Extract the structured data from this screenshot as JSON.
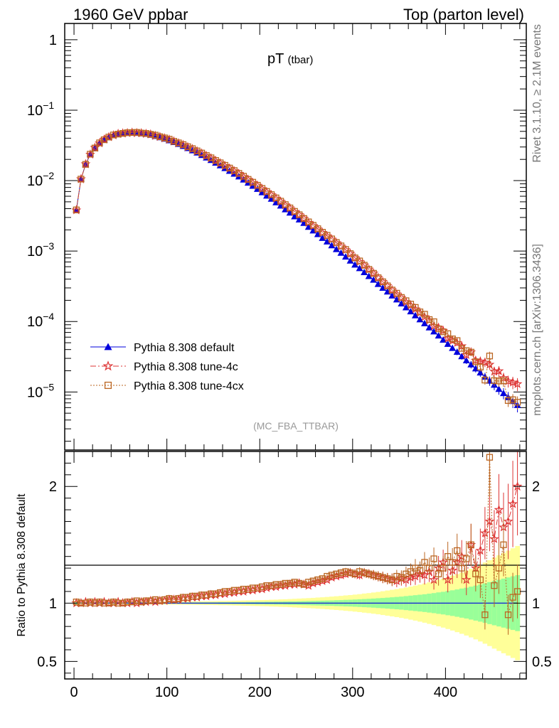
{
  "header": {
    "left": "1960 GeV ppbar",
    "right": "Top (parton level)",
    "side_top": "Rivet 3.1.10, ≥ 2.1M events",
    "side_bottom": "mcplots.cern.ch [arXiv:1306.3436]"
  },
  "chart_data": [
    {
      "type": "line",
      "title": "pT",
      "title_sub": "(tbar)",
      "watermark": "(MC_FBA_TTBAR)",
      "ylabel": "",
      "xlabel": "",
      "x_scale": "linear",
      "y_scale": "log",
      "xlim": [
        -10,
        487
      ],
      "ylim": [
        1.5e-06,
        1.7
      ],
      "y_ticks": [
        {
          "value": 1,
          "label": "1"
        },
        {
          "value": 0.1,
          "label": "10",
          "exp": "−1"
        },
        {
          "value": 0.01,
          "label": "10",
          "exp": "−2"
        },
        {
          "value": 0.001,
          "label": "10",
          "exp": "−3"
        },
        {
          "value": 0.0001,
          "label": "10",
          "exp": "−4"
        },
        {
          "value": 1e-05,
          "label": "10",
          "exp": "−5"
        }
      ],
      "legend_position": "lower-left",
      "series": [
        {
          "name": "Pythia 8.308 default",
          "color": "#0000dd",
          "marker": "filled-triangle",
          "line": "solid"
        },
        {
          "name": "Pythia 8.308 tune-4c",
          "color": "#dd3333",
          "marker": "open-star",
          "line": "dash-dot"
        },
        {
          "name": "Pythia 8.308 tune-4cx",
          "color": "#bb6622",
          "marker": "open-square",
          "line": "dotted"
        }
      ],
      "x": [
        2.5,
        7.5,
        12.5,
        17.5,
        22.5,
        27.5,
        32.5,
        37.5,
        42.5,
        47.5,
        52.5,
        57.5,
        62.5,
        67.5,
        72.5,
        77.5,
        82.5,
        87.5,
        92.5,
        97.5,
        102.5,
        107.5,
        112.5,
        117.5,
        122.5,
        127.5,
        132.5,
        137.5,
        142.5,
        147.5,
        152.5,
        157.5,
        162.5,
        167.5,
        172.5,
        177.5,
        182.5,
        187.5,
        192.5,
        197.5,
        202.5,
        207.5,
        212.5,
        217.5,
        222.5,
        227.5,
        232.5,
        237.5,
        242.5,
        247.5,
        252.5,
        257.5,
        262.5,
        267.5,
        272.5,
        277.5,
        282.5,
        287.5,
        292.5,
        297.5,
        302.5,
        307.5,
        312.5,
        317.5,
        322.5,
        327.5,
        332.5,
        337.5,
        342.5,
        347.5,
        352.5,
        357.5,
        362.5,
        367.5,
        372.5,
        377.5,
        382.5,
        387.5,
        392.5,
        397.5,
        402.5,
        407.5,
        412.5,
        417.5,
        422.5,
        427.5,
        432.5,
        437.5,
        442.5,
        447.5,
        452.5,
        457.5,
        462.5,
        467.5,
        472.5,
        477.5
      ],
      "ref_values": [
        0.0038,
        0.0105,
        0.017,
        0.0235,
        0.029,
        0.034,
        0.038,
        0.0415,
        0.044,
        0.0457,
        0.0468,
        0.0474,
        0.0476,
        0.0474,
        0.0468,
        0.0458,
        0.0445,
        0.0429,
        0.0411,
        0.0392,
        0.0372,
        0.0351,
        0.033,
        0.0309,
        0.0288,
        0.0268,
        0.0249,
        0.023,
        0.0212,
        0.0195,
        0.0179,
        0.0164,
        0.015,
        0.0137,
        0.0125,
        0.0114,
        0.0103,
        0.0093,
        0.0084,
        0.0076,
        0.0068,
        0.0061,
        0.0055,
        0.0049,
        0.0044,
        0.0039,
        0.0035,
        0.0031,
        0.0028,
        0.0025,
        0.0022,
        0.00195,
        0.00173,
        0.00153,
        0.00136,
        0.0012,
        0.00106,
        0.00094,
        0.00083,
        0.00073,
        0.00064,
        0.00057,
        0.0005,
        0.00044,
        0.00039,
        0.00034,
        0.0003,
        0.000265,
        0.000233,
        0.000205,
        0.00018,
        0.000158,
        0.000139,
        0.000122,
        0.000107,
        9.4e-05,
        8.2e-05,
        7.2e-05,
        6.3e-05,
        5.5e-05,
        4.8e-05,
        4.2e-05,
        3.7e-05,
        3.2e-05,
        2.8e-05,
        2.45e-05,
        2.15e-05,
        1.88e-05,
        1.64e-05,
        1.44e-05,
        1.26e-05,
        1.1e-05,
        9.6e-06,
        8.4e-06,
        7.4e-06,
        6.5e-06
      ]
    },
    {
      "type": "line",
      "ylabel": "Ratio to Pythia 8.308 default",
      "xlabel": "",
      "xlim": [
        -10,
        487
      ],
      "ylim": [
        0.35,
        2.3
      ],
      "y_ticks": [
        {
          "value": 0.5,
          "label": "0.5"
        },
        {
          "value": 1,
          "label": "1"
        },
        {
          "value": 2,
          "label": "2"
        }
      ],
      "x_ticks": [
        {
          "value": 0,
          "label": "0"
        },
        {
          "value": 100,
          "label": "100"
        },
        {
          "value": 200,
          "label": "200"
        },
        {
          "value": 300,
          "label": "300"
        },
        {
          "value": 400,
          "label": "400"
        }
      ],
      "band_colors": {
        "inner": "#99ff99",
        "outer": "#ffff99"
      },
      "series": [
        {
          "name": "Pythia 8.308 tune-4c",
          "color": "#dd3333",
          "ratios": [
            1.0,
            1.0,
            1.01,
            1.0,
            1.01,
            1.0,
            1.01,
            1.0,
            1.0,
            1.01,
            1.0,
            1.0,
            1.01,
            1.0,
            1.01,
            1.01,
            1.02,
            1.01,
            1.02,
            1.02,
            1.03,
            1.03,
            1.03,
            1.04,
            1.04,
            1.05,
            1.05,
            1.06,
            1.06,
            1.07,
            1.07,
            1.08,
            1.08,
            1.09,
            1.09,
            1.1,
            1.1,
            1.11,
            1.11,
            1.12,
            1.12,
            1.13,
            1.14,
            1.14,
            1.15,
            1.15,
            1.16,
            1.16,
            1.17,
            1.16,
            1.15,
            1.17,
            1.18,
            1.19,
            1.2,
            1.22,
            1.23,
            1.24,
            1.25,
            1.26,
            1.25,
            1.24,
            1.26,
            1.25,
            1.24,
            1.23,
            1.22,
            1.21,
            1.2,
            1.19,
            1.21,
            1.2,
            1.22,
            1.23,
            1.25,
            1.24,
            1.27,
            1.2,
            1.3,
            1.35,
            1.2,
            1.28,
            1.35,
            1.4,
            1.2,
            1.5,
            1.3,
            1.45,
            1.6,
            1.7,
            1.55,
            1.8,
            1.65,
            1.7,
            1.85,
            2.0
          ]
        },
        {
          "name": "Pythia 8.308 tune-4cx",
          "color": "#bb6622",
          "ratios": [
            1.01,
            1.0,
            1.0,
            1.01,
            1.0,
            1.01,
            1.0,
            1.0,
            1.01,
            1.0,
            1.0,
            1.01,
            1.01,
            1.02,
            1.01,
            1.02,
            1.02,
            1.03,
            1.02,
            1.03,
            1.04,
            1.03,
            1.04,
            1.05,
            1.05,
            1.06,
            1.06,
            1.07,
            1.07,
            1.08,
            1.08,
            1.09,
            1.1,
            1.1,
            1.11,
            1.11,
            1.12,
            1.12,
            1.13,
            1.13,
            1.14,
            1.15,
            1.15,
            1.16,
            1.16,
            1.17,
            1.17,
            1.18,
            1.17,
            1.16,
            1.18,
            1.19,
            1.2,
            1.21,
            1.23,
            1.24,
            1.25,
            1.26,
            1.27,
            1.26,
            1.25,
            1.27,
            1.26,
            1.25,
            1.24,
            1.23,
            1.22,
            1.21,
            1.2,
            1.23,
            1.22,
            1.25,
            1.27,
            1.3,
            1.28,
            1.35,
            1.3,
            1.38,
            1.25,
            1.3,
            1.4,
            1.35,
            1.45,
            1.3,
            1.38,
            1.5,
            1.25,
            1.2,
            0.9,
            2.25,
            1.15,
            1.3,
            1.5,
            0.9,
            1.05,
            1.1
          ]
        }
      ],
      "ratio_errors": [
        0.01,
        0.01,
        0.01,
        0.01,
        0.01,
        0.01,
        0.01,
        0.01,
        0.01,
        0.01,
        0.01,
        0.01,
        0.01,
        0.01,
        0.01,
        0.01,
        0.01,
        0.01,
        0.01,
        0.01,
        0.01,
        0.01,
        0.01,
        0.01,
        0.01,
        0.01,
        0.01,
        0.01,
        0.01,
        0.01,
        0.01,
        0.01,
        0.01,
        0.01,
        0.01,
        0.01,
        0.01,
        0.01,
        0.01,
        0.01,
        0.01,
        0.015,
        0.015,
        0.015,
        0.015,
        0.015,
        0.015,
        0.015,
        0.015,
        0.02,
        0.02,
        0.02,
        0.02,
        0.02,
        0.02,
        0.02,
        0.02,
        0.025,
        0.025,
        0.025,
        0.03,
        0.03,
        0.03,
        0.03,
        0.035,
        0.035,
        0.04,
        0.04,
        0.045,
        0.045,
        0.05,
        0.05,
        0.055,
        0.06,
        0.06,
        0.065,
        0.07,
        0.07,
        0.08,
        0.08,
        0.09,
        0.09,
        0.1,
        0.1,
        0.11,
        0.12,
        0.12,
        0.13,
        0.14,
        0.15,
        0.16,
        0.17,
        0.18,
        0.19,
        0.2,
        0.21
      ],
      "band_inner": [
        0.012,
        0.008,
        0.006,
        0.006,
        0.006,
        0.006,
        0.006,
        0.006,
        0.006,
        0.006,
        0.006,
        0.006,
        0.006,
        0.006,
        0.006,
        0.006,
        0.006,
        0.006,
        0.006,
        0.006,
        0.006,
        0.006,
        0.006,
        0.006,
        0.006,
        0.006,
        0.006,
        0.007,
        0.007,
        0.007,
        0.007,
        0.008,
        0.008,
        0.008,
        0.009,
        0.009,
        0.009,
        0.01,
        0.01,
        0.011,
        0.011,
        0.012,
        0.012,
        0.013,
        0.013,
        0.014,
        0.015,
        0.015,
        0.016,
        0.017,
        0.018,
        0.019,
        0.02,
        0.021,
        0.022,
        0.023,
        0.025,
        0.026,
        0.028,
        0.029,
        0.031,
        0.033,
        0.035,
        0.037,
        0.039,
        0.042,
        0.044,
        0.047,
        0.05,
        0.053,
        0.056,
        0.06,
        0.064,
        0.068,
        0.072,
        0.076,
        0.081,
        0.086,
        0.092,
        0.097,
        0.104,
        0.11,
        0.117,
        0.125,
        0.132,
        0.141,
        0.15,
        0.159,
        0.169,
        0.18,
        0.19,
        0.2,
        0.21,
        0.22,
        0.23,
        0.24
      ],
      "band_outer": [
        0.02,
        0.014,
        0.01,
        0.01,
        0.01,
        0.01,
        0.01,
        0.01,
        0.01,
        0.01,
        0.01,
        0.01,
        0.01,
        0.01,
        0.01,
        0.01,
        0.011,
        0.011,
        0.011,
        0.012,
        0.012,
        0.012,
        0.013,
        0.013,
        0.014,
        0.014,
        0.015,
        0.015,
        0.016,
        0.016,
        0.017,
        0.018,
        0.018,
        0.019,
        0.02,
        0.021,
        0.022,
        0.023,
        0.024,
        0.025,
        0.026,
        0.027,
        0.029,
        0.03,
        0.032,
        0.033,
        0.035,
        0.037,
        0.039,
        0.041,
        0.043,
        0.045,
        0.048,
        0.05,
        0.053,
        0.056,
        0.059,
        0.062,
        0.066,
        0.069,
        0.073,
        0.077,
        0.082,
        0.086,
        0.091,
        0.096,
        0.102,
        0.108,
        0.114,
        0.12,
        0.127,
        0.134,
        0.142,
        0.15,
        0.159,
        0.168,
        0.178,
        0.188,
        0.199,
        0.21,
        0.222,
        0.235,
        0.249,
        0.263,
        0.278,
        0.294,
        0.311,
        0.329,
        0.348,
        0.368,
        0.39,
        0.41,
        0.43,
        0.45,
        0.47,
        0.49
      ]
    }
  ]
}
